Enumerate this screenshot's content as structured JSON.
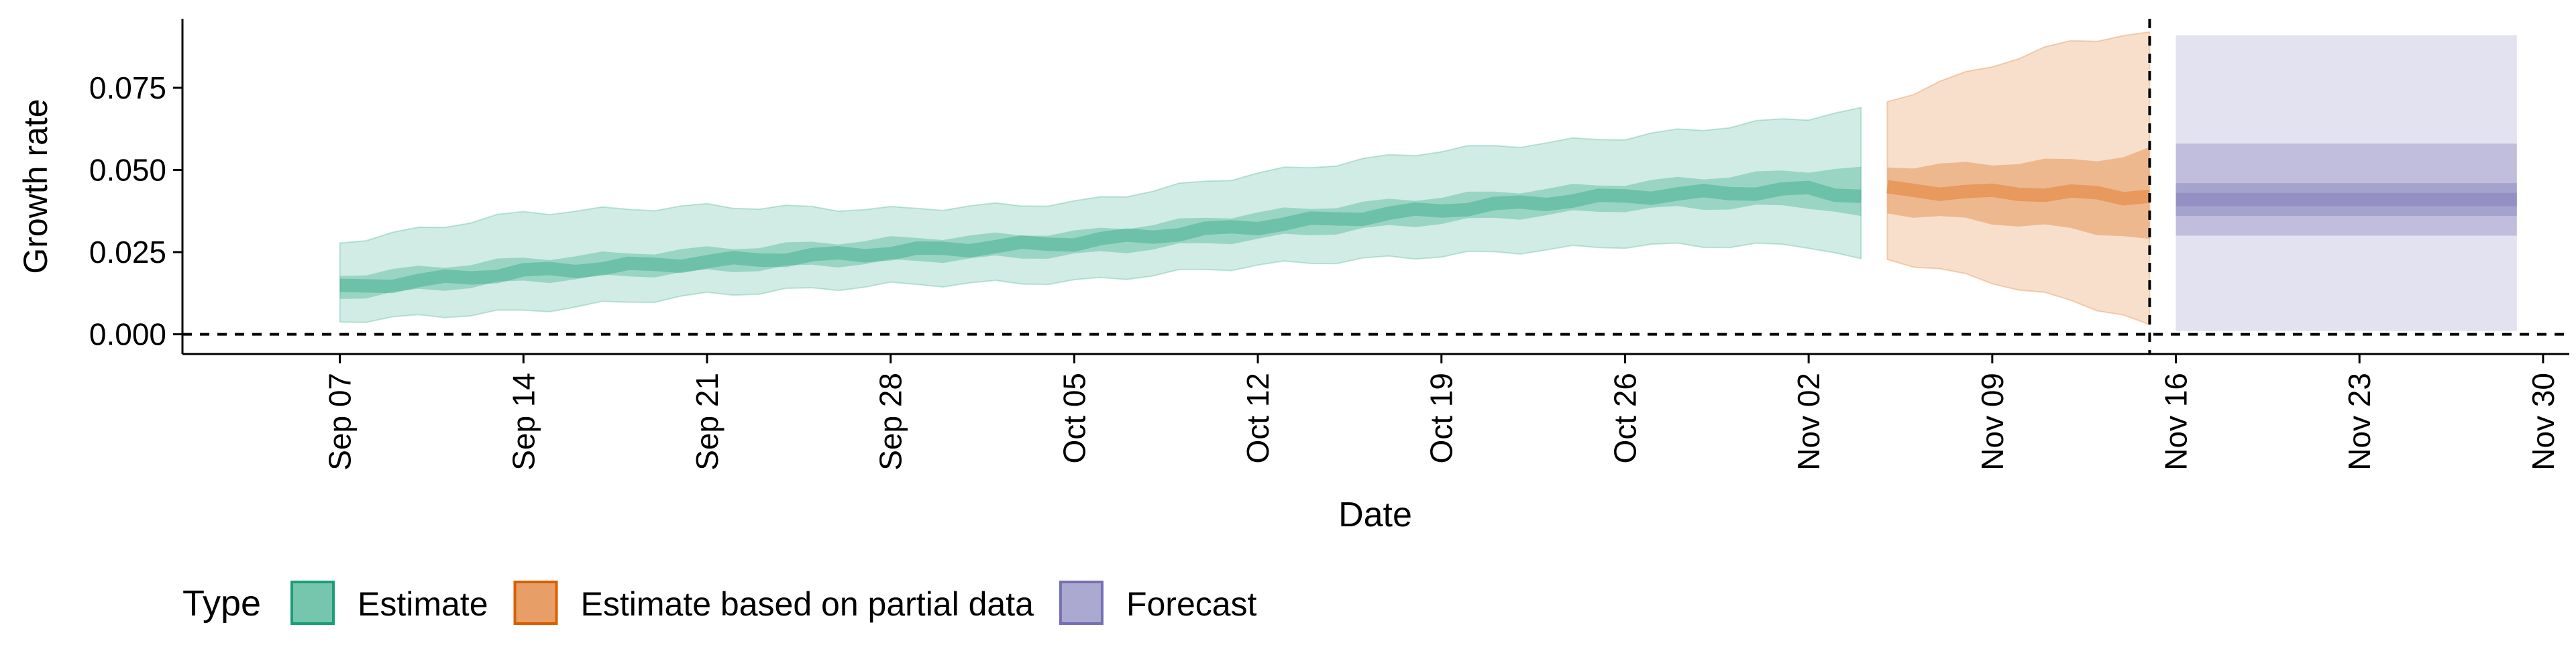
{
  "chart_data": {
    "type": "area",
    "title": "",
    "xlabel": "Date",
    "ylabel": "Growth rate",
    "x_range": [
      "2020-09-01",
      "2020-12-01"
    ],
    "ylim": [
      -0.006,
      0.096
    ],
    "y_ticks": [
      {
        "value": 0.0,
        "label": "0.000"
      },
      {
        "value": 0.025,
        "label": "0.025"
      },
      {
        "value": 0.05,
        "label": "0.050"
      },
      {
        "value": 0.075,
        "label": "0.075"
      }
    ],
    "x_ticks": [
      {
        "date": "2020-09-07",
        "label": "Sep 07"
      },
      {
        "date": "2020-09-14",
        "label": "Sep 14"
      },
      {
        "date": "2020-09-21",
        "label": "Sep 21"
      },
      {
        "date": "2020-09-28",
        "label": "Sep 28"
      },
      {
        "date": "2020-10-05",
        "label": "Oct 05"
      },
      {
        "date": "2020-10-12",
        "label": "Oct 12"
      },
      {
        "date": "2020-10-19",
        "label": "Oct 19"
      },
      {
        "date": "2020-10-26",
        "label": "Oct 26"
      },
      {
        "date": "2020-11-02",
        "label": "Nov 02"
      },
      {
        "date": "2020-11-09",
        "label": "Nov 09"
      },
      {
        "date": "2020-11-16",
        "label": "Nov 16"
      },
      {
        "date": "2020-11-23",
        "label": "Nov 23"
      },
      {
        "date": "2020-11-30",
        "label": "Nov 30"
      }
    ],
    "reference_lines": [
      {
        "axis": "y",
        "value": 0.0,
        "style": "dashed"
      },
      {
        "axis": "x",
        "value": "2020-11-15",
        "style": "dashed"
      }
    ],
    "grid": false,
    "legend": {
      "title": "Type",
      "position": "bottom-left"
    },
    "series": [
      {
        "name": "Estimate",
        "color": "#1B9E77",
        "points": [
          {
            "x": "2020-09-07",
            "median": 0.014,
            "lower_50": 0.011,
            "upper_50": 0.018,
            "lower_90": 0.004,
            "upper_90": 0.028
          },
          {
            "x": "2020-09-14",
            "median": 0.019,
            "lower_50": 0.016,
            "upper_50": 0.023,
            "lower_90": 0.007,
            "upper_90": 0.037
          },
          {
            "x": "2020-09-21",
            "median": 0.022,
            "lower_50": 0.019,
            "upper_50": 0.026,
            "lower_90": 0.012,
            "upper_90": 0.039
          },
          {
            "x": "2020-09-28",
            "median": 0.025,
            "lower_50": 0.022,
            "upper_50": 0.029,
            "lower_90": 0.015,
            "upper_90": 0.038
          },
          {
            "x": "2020-10-05",
            "median": 0.028,
            "lower_50": 0.024,
            "upper_50": 0.031,
            "lower_90": 0.016,
            "upper_90": 0.04
          },
          {
            "x": "2020-10-12",
            "median": 0.033,
            "lower_50": 0.029,
            "upper_50": 0.037,
            "lower_90": 0.021,
            "upper_90": 0.049
          },
          {
            "x": "2020-10-19",
            "median": 0.038,
            "lower_50": 0.034,
            "upper_50": 0.042,
            "lower_90": 0.024,
            "upper_90": 0.056
          },
          {
            "x": "2020-10-26",
            "median": 0.042,
            "lower_50": 0.038,
            "upper_50": 0.046,
            "lower_90": 0.027,
            "upper_90": 0.06
          },
          {
            "x": "2020-11-02",
            "median": 0.044,
            "lower_50": 0.039,
            "upper_50": 0.05,
            "lower_90": 0.027,
            "upper_90": 0.066
          },
          {
            "x": "2020-11-04",
            "median": 0.042,
            "lower_50": 0.036,
            "upper_50": 0.051,
            "lower_90": 0.023,
            "upper_90": 0.069
          }
        ]
      },
      {
        "name": "Estimate based on partial data",
        "color": "#D95F02",
        "points": [
          {
            "x": "2020-11-05",
            "median": 0.044,
            "lower_50": 0.037,
            "upper_50": 0.051,
            "lower_90": 0.023,
            "upper_90": 0.071
          },
          {
            "x": "2020-11-09",
            "median": 0.043,
            "lower_50": 0.034,
            "upper_50": 0.052,
            "lower_90": 0.016,
            "upper_90": 0.082
          },
          {
            "x": "2020-11-12",
            "median": 0.043,
            "lower_50": 0.032,
            "upper_50": 0.053,
            "lower_90": 0.01,
            "upper_90": 0.089
          },
          {
            "x": "2020-11-14",
            "median": 0.042,
            "lower_50": 0.03,
            "upper_50": 0.054,
            "lower_90": 0.006,
            "upper_90": 0.091
          },
          {
            "x": "2020-11-15",
            "median": 0.042,
            "lower_50": 0.029,
            "upper_50": 0.057,
            "lower_90": 0.003,
            "upper_90": 0.092
          }
        ]
      },
      {
        "name": "Forecast",
        "color": "#7570B3",
        "points": [
          {
            "x": "2020-11-16",
            "median": 0.041,
            "lower_50": 0.036,
            "upper_50": 0.046,
            "lower_90": 0.03,
            "upper_90": 0.058,
            "lower_95": 0.001,
            "upper_95": 0.091
          },
          {
            "x": "2020-11-29",
            "median": 0.041,
            "lower_50": 0.036,
            "upper_50": 0.046,
            "lower_90": 0.03,
            "upper_90": 0.058,
            "lower_95": 0.001,
            "upper_95": 0.091
          }
        ]
      }
    ]
  }
}
